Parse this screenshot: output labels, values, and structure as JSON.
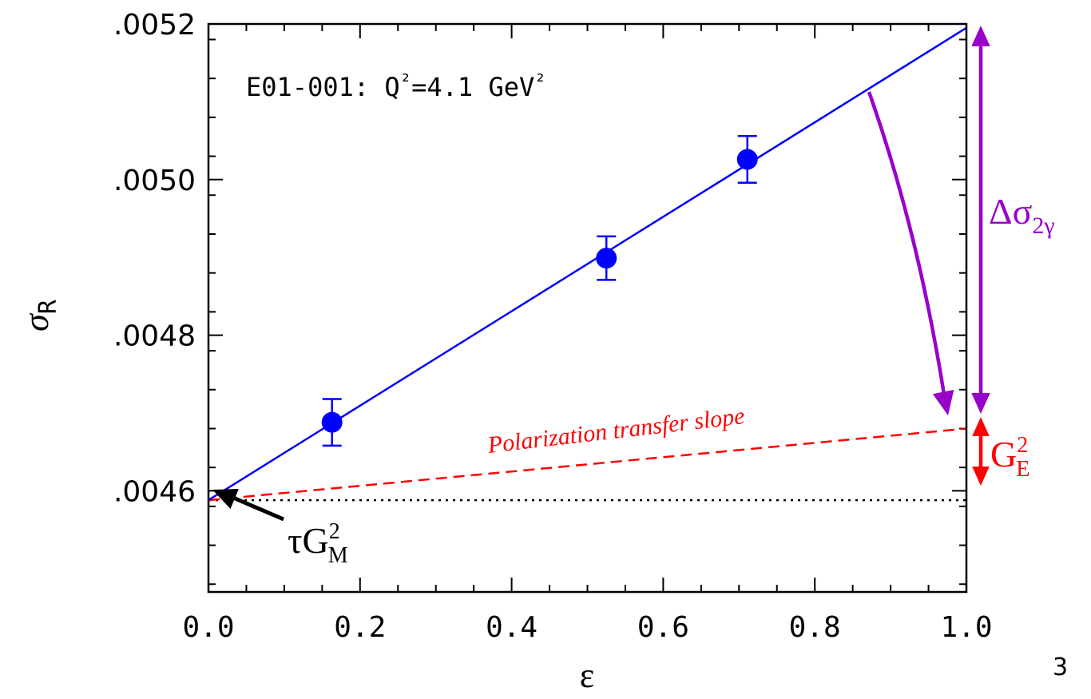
{
  "page_number": "3",
  "colors": {
    "data": "#0000ff",
    "fit": "#0000ff",
    "pt_slope": "#ff0000",
    "two_photon": "#9900cc",
    "baseline": "#000000"
  },
  "chart_data": {
    "type": "scatter",
    "title": "E01-001: Q²=4.1 GeV²",
    "xlabel": "ε",
    "ylabel": "σ_R",
    "xlim": [
      0.0,
      1.0
    ],
    "ylim": [
      0.00447,
      0.0052
    ],
    "xticks": [
      0.0,
      0.2,
      0.4,
      0.6,
      0.8,
      1.0
    ],
    "xtick_labels": [
      "0.0",
      "0.2",
      "0.4",
      "0.6",
      "0.8",
      "1.0"
    ],
    "yticks": [
      0.0046,
      0.0048,
      0.005,
      0.0052
    ],
    "ytick_labels": [
      ".0046",
      ".0048",
      ".0050",
      ".0052"
    ],
    "grid": false,
    "series": [
      {
        "type": "scatter",
        "x": [
          0.163,
          0.525,
          0.711
        ],
        "y": [
          0.004688,
          0.004899,
          0.005026
        ],
        "yerr": [
          3e-05,
          2.8e-05,
          3e-05
        ]
      },
      {
        "type": "line",
        "x": [
          0.0,
          1.0
        ],
        "y": [
          0.004588,
          0.005195
        ]
      },
      {
        "type": "dashed-line",
        "x": [
          0.0,
          1.0
        ],
        "y": [
          0.004588,
          0.00468
        ]
      },
      {
        "type": "dotted-line",
        "x": [
          0.0,
          1.0
        ],
        "y": [
          0.004588,
          0.004588
        ]
      }
    ],
    "annotations": [
      {
        "text": "Polarization transfer slope"
      },
      {
        "text": "τG",
        "sup": "2",
        "sub": "M"
      },
      {
        "text": "Δσ",
        "sub": "2γ"
      },
      {
        "text": "G",
        "sup": "2",
        "sub": "E"
      }
    ]
  }
}
